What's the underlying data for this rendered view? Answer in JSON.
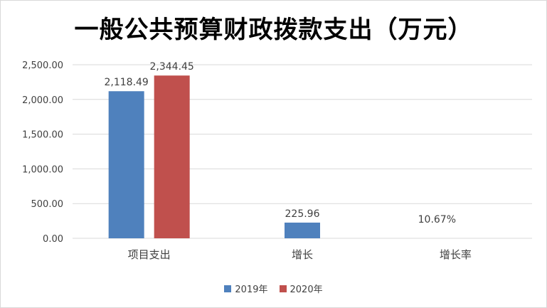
{
  "chart_data": {
    "type": "bar",
    "title": "一般公共预算财政拨款支出（万元）",
    "categories": [
      "项目支出",
      "增长",
      "增长率"
    ],
    "series": [
      {
        "name": "2019年",
        "color": "#4f81bd",
        "values": [
          2118.49,
          225.96,
          null
        ],
        "labels": [
          "2,118.49",
          "225.96",
          "10.67%"
        ]
      },
      {
        "name": "2020年",
        "color": "#c0504d",
        "values": [
          2344.45,
          null,
          null
        ],
        "labels": [
          "2,344.45",
          "",
          ""
        ]
      }
    ],
    "ylim": [
      0,
      2500
    ],
    "yticks": [
      0,
      500,
      1000,
      1500,
      2000,
      2500
    ],
    "ytick_labels": [
      "0.00",
      "500.00",
      "1,000.00",
      "1,500.00",
      "2,000.00",
      "2,500.00"
    ],
    "grid": true,
    "legend_position": "bottom"
  }
}
